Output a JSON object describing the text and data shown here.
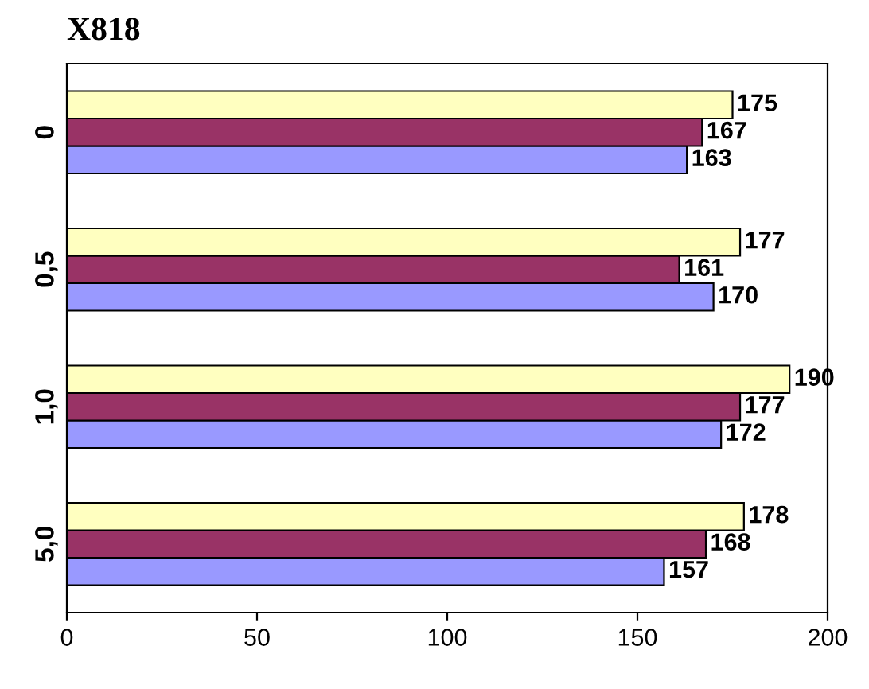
{
  "chart_data": {
    "type": "bar",
    "orientation": "horizontal",
    "title": "X818",
    "categories": [
      "0",
      "0,5",
      "1,0",
      "5,0"
    ],
    "series": [
      {
        "color": "#9999ff",
        "values": [
          163,
          170,
          172,
          157
        ]
      },
      {
        "color": "#993366",
        "values": [
          167,
          161,
          177,
          168
        ]
      },
      {
        "color": "#ffffc0",
        "values": [
          175,
          177,
          190,
          178
        ]
      }
    ],
    "xlim": [
      0,
      200
    ],
    "xticks": [
      0,
      50,
      100,
      150,
      200
    ],
    "data_labels": true,
    "grid": false,
    "legend": false
  }
}
